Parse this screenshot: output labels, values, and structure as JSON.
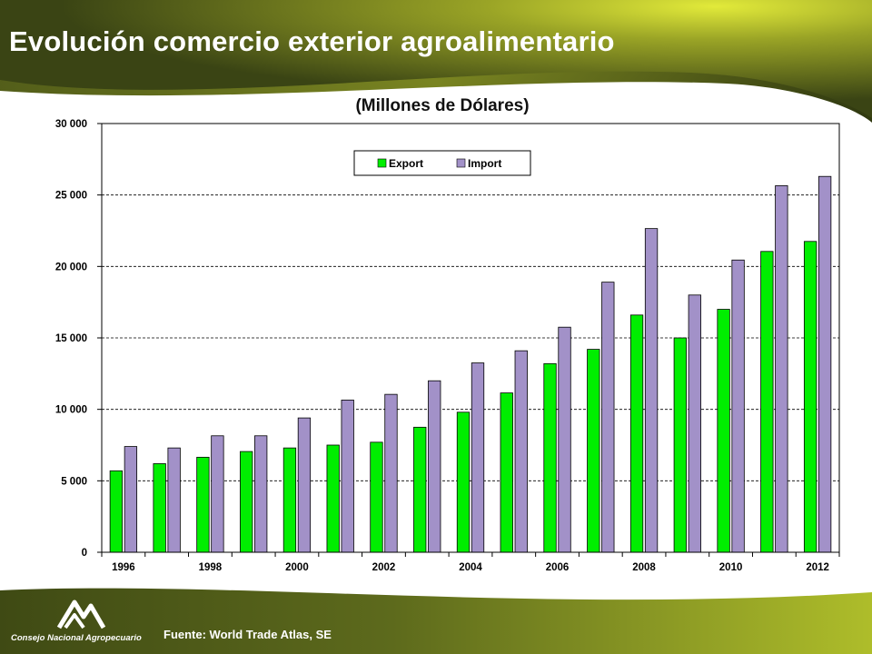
{
  "slide": {
    "title": "Evolución comercio exterior agroalimentario",
    "source": "Fuente:  World Trade Atlas, SE",
    "org_name": "Consejo Nacional Agropecuario"
  },
  "colors": {
    "export": "#00ee00",
    "import": "#a291c8",
    "banner_dark": "#3d4a14",
    "banner_light": "#c8d42a"
  },
  "chart_data": {
    "type": "bar",
    "title": "(Millones de Dólares)",
    "categories": [
      "1996",
      "1997",
      "1998",
      "1999",
      "2000",
      "2001",
      "2002",
      "2003",
      "2004",
      "2005",
      "2006",
      "2007",
      "2008",
      "2009",
      "2010",
      "2011",
      "2012"
    ],
    "tick_labels": [
      "1996",
      "",
      "1998",
      "",
      "2000",
      "",
      "2002",
      "",
      "2004",
      "",
      "2006",
      "",
      "2008",
      "",
      "2010",
      "",
      "2012"
    ],
    "series": [
      {
        "name": "Export",
        "values": [
          5700,
          6200,
          6650,
          7050,
          7300,
          7500,
          7700,
          8750,
          9800,
          11150,
          13200,
          14200,
          16600,
          15000,
          17000,
          21050,
          21750
        ]
      },
      {
        "name": "Import",
        "values": [
          7400,
          7300,
          8150,
          8150,
          9400,
          10650,
          11050,
          12000,
          13250,
          14100,
          15750,
          18900,
          22650,
          18000,
          20450,
          25650,
          26300
        ]
      }
    ],
    "ylim": [
      0,
      30000
    ],
    "yticks": [
      "0",
      "5 000",
      "10 000",
      "15 000",
      "20 000",
      "25 000",
      "30 000"
    ],
    "grid": true,
    "legend": "top-center"
  }
}
